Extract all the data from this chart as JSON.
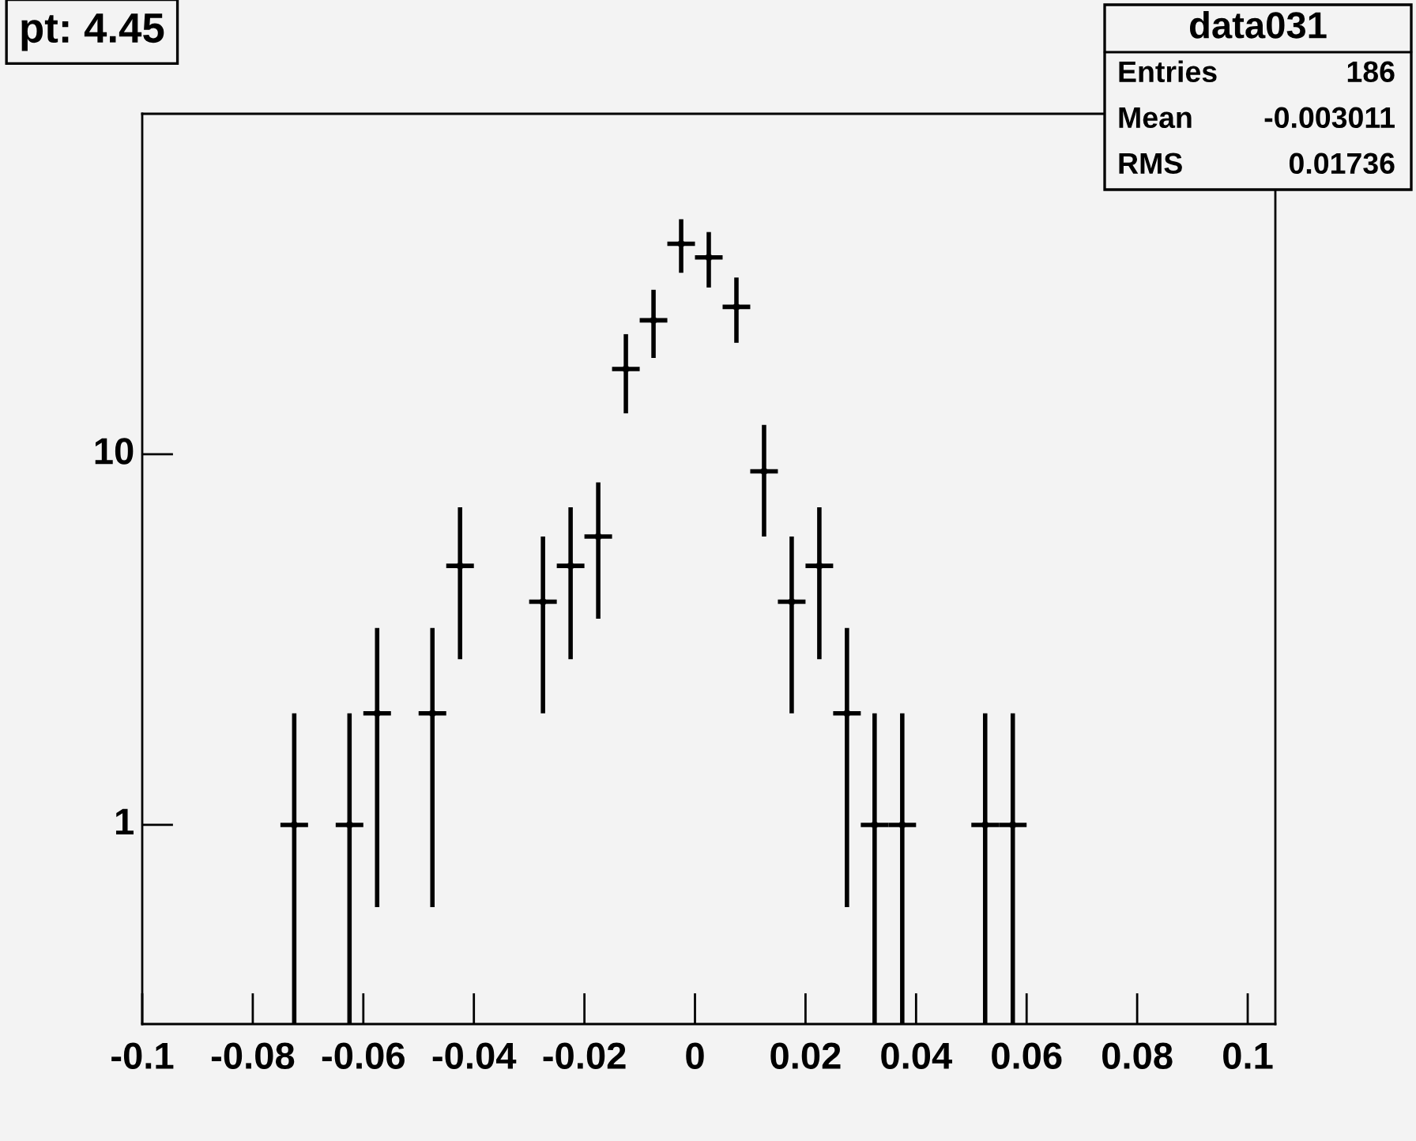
{
  "chart_data": {
    "type": "scatter",
    "title": "pt: 4.45",
    "marker": "square",
    "log": "y",
    "grid": false,
    "legend": false,
    "x": [
      -0.0725,
      -0.0625,
      -0.0575,
      -0.0475,
      -0.0425,
      -0.0275,
      -0.0225,
      -0.0175,
      -0.0125,
      -0.0075,
      -0.0025,
      0.0025,
      0.0075,
      0.0125,
      0.0175,
      0.0225,
      0.0275,
      0.0325,
      0.0375,
      0.0525,
      0.0575
    ],
    "values": [
      1,
      1,
      2,
      2,
      5,
      4,
      5,
      6,
      17,
      23,
      37,
      34,
      25,
      9,
      4,
      5,
      2,
      1,
      1,
      1,
      1
    ],
    "errors": [
      [
        0.29,
        2
      ],
      [
        0.29,
        2
      ],
      1.4,
      1.4,
      2.2,
      2,
      2.2,
      2.4,
      4.1,
      4.8,
      6.1,
      5.8,
      5,
      3,
      2,
      2.2,
      1.4,
      [
        0.29,
        2
      ],
      [
        0.29,
        2
      ],
      [
        0.29,
        2
      ],
      [
        0.29,
        2
      ]
    ],
    "xerrors": [
      0.0025,
      0.0025,
      0.0025,
      0.0025,
      0.0025,
      0.0025,
      0.0025,
      0.0025,
      0.0025,
      0.0025,
      0.0025,
      0.0025,
      0.0025,
      0.0025,
      0.0025,
      0.0025,
      0.0025,
      0.0025,
      0.0025,
      0.0025,
      0.0025
    ],
    "xlim": [
      -0.1,
      0.105
    ],
    "xticks": [
      -0.1,
      -0.08,
      -0.06,
      -0.04,
      -0.02,
      0,
      0.02,
      0.04,
      0.06,
      0.08,
      0.1
    ],
    "ylim": [
      0.29,
      83
    ],
    "yticks": [
      1,
      10
    ],
    "annotations": [
      "data031",
      "Entries",
      "186",
      "Mean",
      "-0.003011",
      "RMS",
      "0.01736"
    ]
  }
}
